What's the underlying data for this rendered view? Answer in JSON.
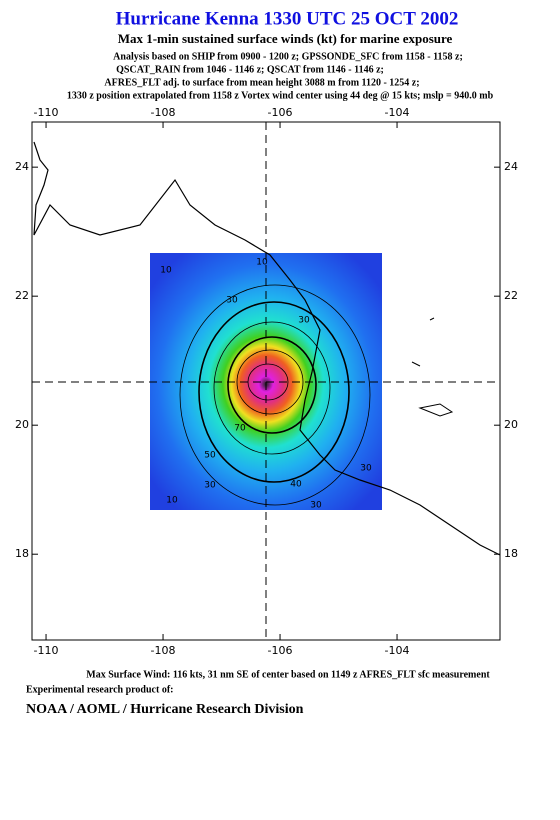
{
  "chart_data": {
    "type": "map",
    "title": "Hurricane Kenna 1330 UTC 25 OCT 2002",
    "subtitle": "Max 1-min sustained surface winds (kt) for marine exposure",
    "notes": [
      "Analysis based on  SHIP from 0900 - 1200 z;  GPSSONDE_SFC from 1158 - 1158 z;",
      "QSCAT_RAIN from 1046 - 1146 z;  QSCAT from 1146 - 1146 z;",
      "AFRES_FLT adj. to surface from mean height 3088 m from 1120 - 1254 z;",
      "1330 z position extrapolated from 1158 z Vortex wind center using 44 deg @ 15 kts; mslp = 940.0 mb"
    ],
    "footer": [
      "Max Surface Wind: 116 kts, 31 nm SE of center based on 1149 z AFRES_FLT sfc measurement",
      "Experimental research product of:",
      "NOAA / AOML / Hurricane Research Division"
    ],
    "xlim": [
      -110.24,
      -102.24
    ],
    "ylim": [
      16.67,
      24.7
    ],
    "xticks": [
      -110,
      -108,
      -106,
      -104
    ],
    "yticks": [
      18,
      20,
      22,
      24
    ],
    "contour_labels": [
      10,
      10,
      30,
      30,
      30,
      50,
      70,
      40,
      30,
      30,
      10
    ]
  }
}
